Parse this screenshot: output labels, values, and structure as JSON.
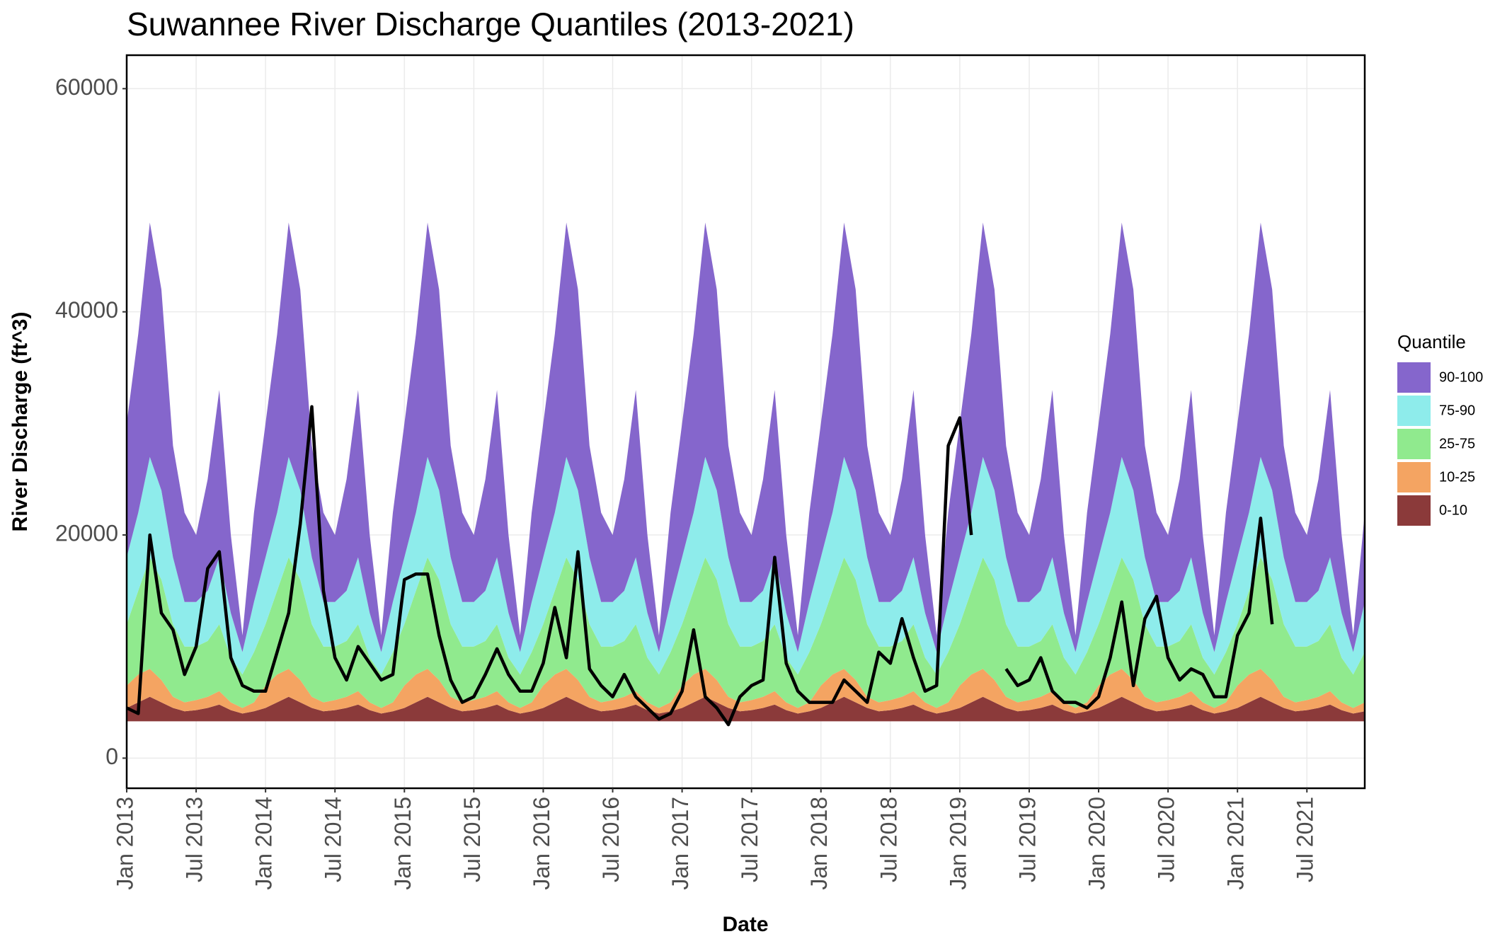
{
  "chart_data": {
    "type": "stacked_area",
    "title": "Suwannee River Discharge Quantiles (2013-2021)",
    "x_label": "Date",
    "y_label": "River Discharge (ft^3)",
    "legend_title": "Quantile",
    "legend_position": "right",
    "grid": true,
    "baseline": 3300,
    "x": [
      "2013-01",
      "2013-02",
      "2013-03",
      "2013-04",
      "2013-05",
      "2013-06",
      "2013-07",
      "2013-08",
      "2013-09",
      "2013-10",
      "2013-11",
      "2013-12",
      "2014-01",
      "2014-02",
      "2014-03",
      "2014-04",
      "2014-05",
      "2014-06",
      "2014-07",
      "2014-08",
      "2014-09",
      "2014-10",
      "2014-11",
      "2014-12",
      "2015-01",
      "2015-02",
      "2015-03",
      "2015-04",
      "2015-05",
      "2015-06",
      "2015-07",
      "2015-08",
      "2015-09",
      "2015-10",
      "2015-11",
      "2015-12",
      "2016-01",
      "2016-02",
      "2016-03",
      "2016-04",
      "2016-05",
      "2016-06",
      "2016-07",
      "2016-08",
      "2016-09",
      "2016-10",
      "2016-11",
      "2016-12",
      "2017-01",
      "2017-02",
      "2017-03",
      "2017-04",
      "2017-05",
      "2017-06",
      "2017-07",
      "2017-08",
      "2017-09",
      "2017-10",
      "2017-11",
      "2017-12",
      "2018-01",
      "2018-02",
      "2018-03",
      "2018-04",
      "2018-05",
      "2018-06",
      "2018-07",
      "2018-08",
      "2018-09",
      "2018-10",
      "2018-11",
      "2018-12",
      "2019-01",
      "2019-02",
      "2019-03",
      "2019-04",
      "2019-05",
      "2019-06",
      "2019-07",
      "2019-08",
      "2019-09",
      "2019-10",
      "2019-11",
      "2019-12",
      "2020-01",
      "2020-02",
      "2020-03",
      "2020-04",
      "2020-05",
      "2020-06",
      "2020-07",
      "2020-08",
      "2020-09",
      "2020-10",
      "2020-11",
      "2020-12",
      "2021-01",
      "2021-02",
      "2021-03",
      "2021-04",
      "2021-05",
      "2021-06",
      "2021-07",
      "2021-08",
      "2021-09",
      "2021-10",
      "2021-11",
      "2021-12"
    ],
    "xlim": [
      "2013-01",
      "2021-12"
    ],
    "xticks": [
      {
        "value": "2013-01",
        "label": "Jan 2013"
      },
      {
        "value": "2013-07",
        "label": "Jul 2013"
      },
      {
        "value": "2014-01",
        "label": "Jan 2014"
      },
      {
        "value": "2014-07",
        "label": "Jul 2014"
      },
      {
        "value": "2015-01",
        "label": "Jan 2015"
      },
      {
        "value": "2015-07",
        "label": "Jul 2015"
      },
      {
        "value": "2016-01",
        "label": "Jan 2016"
      },
      {
        "value": "2016-07",
        "label": "Jul 2016"
      },
      {
        "value": "2017-01",
        "label": "Jan 2017"
      },
      {
        "value": "2017-07",
        "label": "Jul 2017"
      },
      {
        "value": "2018-01",
        "label": "Jan 2018"
      },
      {
        "value": "2018-07",
        "label": "Jul 2018"
      },
      {
        "value": "2019-01",
        "label": "Jan 2019"
      },
      {
        "value": "2019-07",
        "label": "Jul 2019"
      },
      {
        "value": "2020-01",
        "label": "Jan 2020"
      },
      {
        "value": "2020-07",
        "label": "Jul 2020"
      },
      {
        "value": "2021-01",
        "label": "Jan 2021"
      },
      {
        "value": "2021-07",
        "label": "Jul 2021"
      }
    ],
    "ylim": [
      -2700,
      63000
    ],
    "yticks": [
      0,
      20000,
      40000,
      60000
    ],
    "series": [
      {
        "name": "0-10",
        "color": "#8b3a3a",
        "values": [
          1200,
          1700,
          2200,
          1700,
          1200,
          900,
          1000,
          1200,
          1500,
          1000,
          700,
          900,
          1200,
          1700,
          2200,
          1700,
          1200,
          900,
          1000,
          1200,
          1500,
          1000,
          700,
          900,
          1200,
          1700,
          2200,
          1700,
          1200,
          900,
          1000,
          1200,
          1500,
          1000,
          700,
          900,
          1200,
          1700,
          2200,
          1700,
          1200,
          900,
          1000,
          1200,
          1500,
          1000,
          700,
          900,
          1200,
          1700,
          2200,
          1700,
          1200,
          900,
          1000,
          1200,
          1500,
          1000,
          700,
          900,
          1200,
          1700,
          2200,
          1700,
          1200,
          900,
          1000,
          1200,
          1500,
          1000,
          700,
          900,
          1200,
          1700,
          2200,
          1700,
          1200,
          900,
          1000,
          1200,
          1500,
          1000,
          700,
          900,
          1200,
          1700,
          2200,
          1700,
          1200,
          900,
          1000,
          1200,
          1500,
          1000,
          700,
          900,
          1200,
          1700,
          2200,
          1700,
          1200,
          900,
          1000,
          1200,
          1500,
          1000,
          700,
          900
        ]
      },
      {
        "name": "10-25",
        "color": "#f4a462",
        "values": [
          2000,
          2500,
          2500,
          2000,
          1000,
          800,
          900,
          1000,
          1200,
          700,
          500,
          800,
          2000,
          2500,
          2500,
          2000,
          1000,
          800,
          900,
          1000,
          1200,
          700,
          500,
          800,
          2000,
          2500,
          2500,
          2000,
          1000,
          800,
          900,
          1000,
          1200,
          700,
          500,
          800,
          2000,
          2500,
          2500,
          2000,
          1000,
          800,
          900,
          1000,
          1200,
          700,
          500,
          800,
          2000,
          2500,
          2500,
          2000,
          1000,
          800,
          900,
          1000,
          1200,
          700,
          500,
          800,
          2000,
          2500,
          2500,
          2000,
          1000,
          800,
          900,
          1000,
          1200,
          700,
          500,
          800,
          2000,
          2500,
          2500,
          2000,
          1000,
          800,
          900,
          1000,
          1200,
          700,
          500,
          800,
          2000,
          2500,
          2500,
          2000,
          1000,
          800,
          900,
          1000,
          1200,
          700,
          500,
          800,
          2000,
          2500,
          2500,
          2000,
          1000,
          800,
          900,
          1000,
          1200,
          700,
          500,
          800
        ]
      },
      {
        "name": "25-75",
        "color": "#90ea8e",
        "values": [
          5500,
          7500,
          10000,
          9000,
          6500,
          5000,
          4800,
          5000,
          6000,
          4000,
          3000,
          4500,
          5500,
          7500,
          10000,
          9000,
          6500,
          5000,
          4800,
          5000,
          6000,
          4000,
          3000,
          4500,
          5500,
          7500,
          10000,
          9000,
          6500,
          5000,
          4800,
          5000,
          6000,
          4000,
          3000,
          4500,
          5500,
          7500,
          10000,
          9000,
          6500,
          5000,
          4800,
          5000,
          6000,
          4000,
          3000,
          4500,
          5500,
          7500,
          10000,
          9000,
          6500,
          5000,
          4800,
          5000,
          6000,
          4000,
          3000,
          4500,
          5500,
          7500,
          10000,
          9000,
          6500,
          5000,
          4800,
          5000,
          6000,
          4000,
          3000,
          4500,
          5500,
          7500,
          10000,
          9000,
          6500,
          5000,
          4800,
          5000,
          6000,
          4000,
          3000,
          4500,
          5500,
          7500,
          10000,
          9000,
          6500,
          5000,
          4800,
          5000,
          6000,
          4000,
          3000,
          4500,
          5500,
          7500,
          10000,
          9000,
          6500,
          5000,
          4800,
          5000,
          6000,
          4000,
          3000,
          4500
        ]
      },
      {
        "name": "75-90",
        "color": "#8eeceb",
        "values": [
          6000,
          7000,
          9000,
          8000,
          6000,
          4000,
          4000,
          4500,
          6000,
          4000,
          2000,
          4500,
          6000,
          7000,
          9000,
          8000,
          6000,
          4000,
          4000,
          4500,
          6000,
          4000,
          2000,
          4500,
          6000,
          7000,
          9000,
          8000,
          6000,
          4000,
          4000,
          4500,
          6000,
          4000,
          2000,
          4500,
          6000,
          7000,
          9000,
          8000,
          6000,
          4000,
          4000,
          4500,
          6000,
          4000,
          2000,
          4500,
          6000,
          7000,
          9000,
          8000,
          6000,
          4000,
          4000,
          4500,
          6000,
          4000,
          2000,
          4500,
          6000,
          7000,
          9000,
          8000,
          6000,
          4000,
          4000,
          4500,
          6000,
          4000,
          2000,
          4500,
          6000,
          7000,
          9000,
          8000,
          6000,
          4000,
          4000,
          4500,
          6000,
          4000,
          2000,
          4500,
          6000,
          7000,
          9000,
          8000,
          6000,
          4000,
          4000,
          4500,
          6000,
          4000,
          2000,
          4500,
          6000,
          7000,
          9000,
          8000,
          6000,
          4000,
          4000,
          4500,
          6000,
          4000,
          2000,
          4500
        ]
      },
      {
        "name": "90-100",
        "color": "#8566cc",
        "values": [
          12000,
          16000,
          21000,
          18000,
          10000,
          8000,
          6000,
          10000,
          15000,
          7000,
          1500,
          8000,
          12000,
          16000,
          21000,
          18000,
          10000,
          8000,
          6000,
          10000,
          15000,
          7000,
          1500,
          8000,
          12000,
          16000,
          21000,
          18000,
          10000,
          8000,
          6000,
          10000,
          15000,
          7000,
          1500,
          8000,
          12000,
          16000,
          21000,
          18000,
          10000,
          8000,
          6000,
          10000,
          15000,
          7000,
          1500,
          8000,
          12000,
          16000,
          21000,
          18000,
          10000,
          8000,
          6000,
          10000,
          15000,
          7000,
          1500,
          8000,
          12000,
          16000,
          21000,
          18000,
          10000,
          8000,
          6000,
          10000,
          15000,
          7000,
          1500,
          8000,
          12000,
          16000,
          21000,
          18000,
          10000,
          8000,
          6000,
          10000,
          15000,
          7000,
          1500,
          8000,
          12000,
          16000,
          21000,
          18000,
          10000,
          8000,
          6000,
          10000,
          15000,
          7000,
          1500,
          8000,
          12000,
          16000,
          21000,
          18000,
          10000,
          8000,
          6000,
          10000,
          15000,
          7000,
          1500,
          8000
        ]
      }
    ],
    "observed": {
      "color": "#000000",
      "values": [
        4500,
        4000,
        20000,
        13000,
        11500,
        7500,
        10000,
        17000,
        18500,
        9000,
        6500,
        6000,
        6000,
        9500,
        13000,
        21000,
        31500,
        15000,
        9000,
        7000,
        10000,
        8500,
        7000,
        7500,
        16000,
        16500,
        16500,
        11000,
        7000,
        5000,
        5500,
        7500,
        9800,
        7500,
        6000,
        6000,
        8500,
        13500,
        9000,
        18500,
        8000,
        6500,
        5500,
        7500,
        5500,
        4500,
        3500,
        4000,
        6000,
        11500,
        5500,
        4500,
        3000,
        5500,
        6500,
        7000,
        18000,
        8500,
        6000,
        5000,
        5000,
        5000,
        7000,
        6000,
        5000,
        9500,
        8500,
        12500,
        9000,
        6000,
        6500,
        28000,
        30500,
        20000,
        null,
        null,
        8000,
        6500,
        7000,
        9000,
        6000,
        5000,
        5000,
        4500,
        5500,
        9000,
        14000,
        6500,
        12500,
        14500,
        9000,
        7000,
        8000,
        7500,
        5500,
        5500,
        11000,
        13000,
        21500,
        12000,
        null,
        null,
        null,
        null,
        null,
        null,
        null,
        null
      ]
    }
  }
}
